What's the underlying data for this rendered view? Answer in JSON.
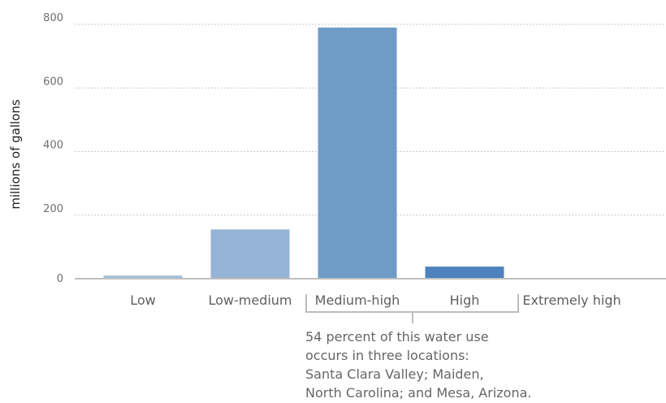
{
  "chart_data": {
    "type": "bar",
    "categories": [
      "Low",
      "Low-medium",
      "Medium-high",
      "High",
      "Extremely high"
    ],
    "values": [
      10,
      155,
      790,
      38,
      0
    ],
    "bar_colors": [
      "#a6bfd9",
      "#95b4d6",
      "#6f9bc7",
      "#4e82bc",
      "#2f6aa8"
    ],
    "ylabel": "millions of gallons",
    "ylim": [
      0,
      800
    ],
    "yticks": [
      0,
      200,
      400,
      600,
      800
    ],
    "grid": true,
    "annotation": {
      "lines": [
        "54 percent of this water use",
        "occurs in three locations:",
        "Santa Clara Valley; Maiden,",
        "North Carolina; and Mesa, Arizona."
      ]
    }
  }
}
